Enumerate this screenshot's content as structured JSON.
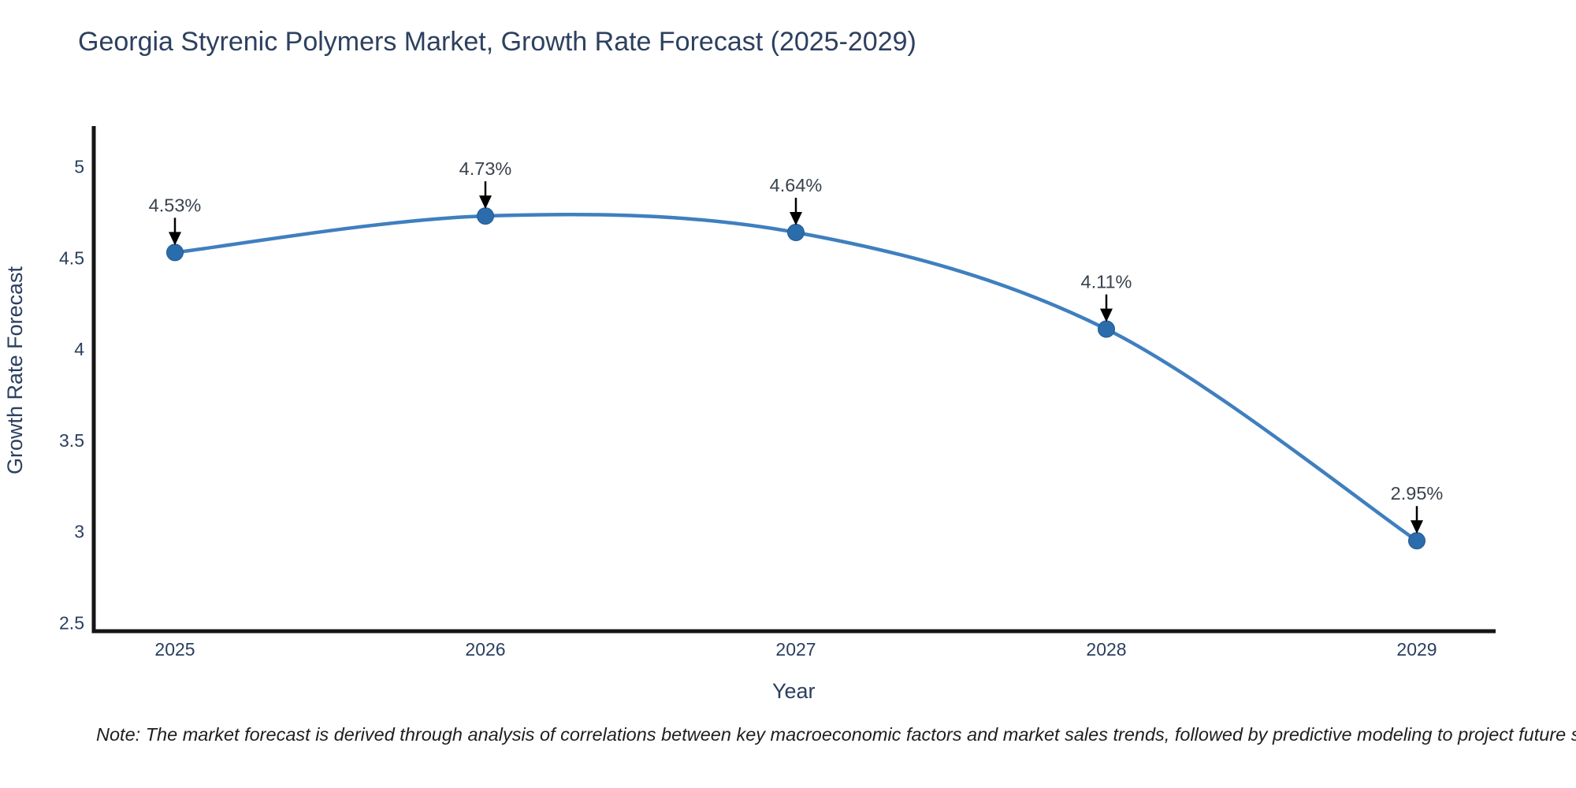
{
  "title": "Georgia Styrenic Polymers Market, Growth Rate Forecast (2025-2029)",
  "footnote": "Note: The market forecast is derived through analysis of correlations between key macroeconomic factors and market sales trends, followed by predictive modeling to project future sales",
  "chart_data": {
    "type": "line",
    "title": "Georgia Styrenic Polymers Market, Growth Rate Forecast (2025-2029)",
    "xlabel": "Year",
    "ylabel": "Growth Rate Forecast",
    "x": [
      2025,
      2026,
      2027,
      2028,
      2029
    ],
    "series": [
      {
        "name": "Growth Rate Forecast",
        "values": [
          4.53,
          4.73,
          4.64,
          4.11,
          2.95
        ]
      }
    ],
    "point_labels": [
      "4.53%",
      "4.73%",
      "4.64%",
      "4.11%",
      "2.95%"
    ],
    "xticks": [
      "2025",
      "2026",
      "2027",
      "2028",
      "2029"
    ],
    "yticks": [
      "2.5",
      "3",
      "3.5",
      "4",
      "4.5",
      "5"
    ],
    "ytick_values": [
      2.5,
      3,
      3.5,
      4,
      4.5,
      5
    ],
    "ylim": [
      2.5,
      5
    ],
    "line_shape": "spline",
    "grid": false,
    "legend_position": "none",
    "colors": {
      "line": "#3f7fbf",
      "marker": "#2b6cac",
      "marker_edge": "#235a90",
      "axis": "#151515",
      "tick_text": "#2a3f5f",
      "axis_title_text": "#2a3f5f",
      "annotation_text": "#3a424d",
      "annotation_arrow": "#000000",
      "background": "#ffffff"
    }
  }
}
